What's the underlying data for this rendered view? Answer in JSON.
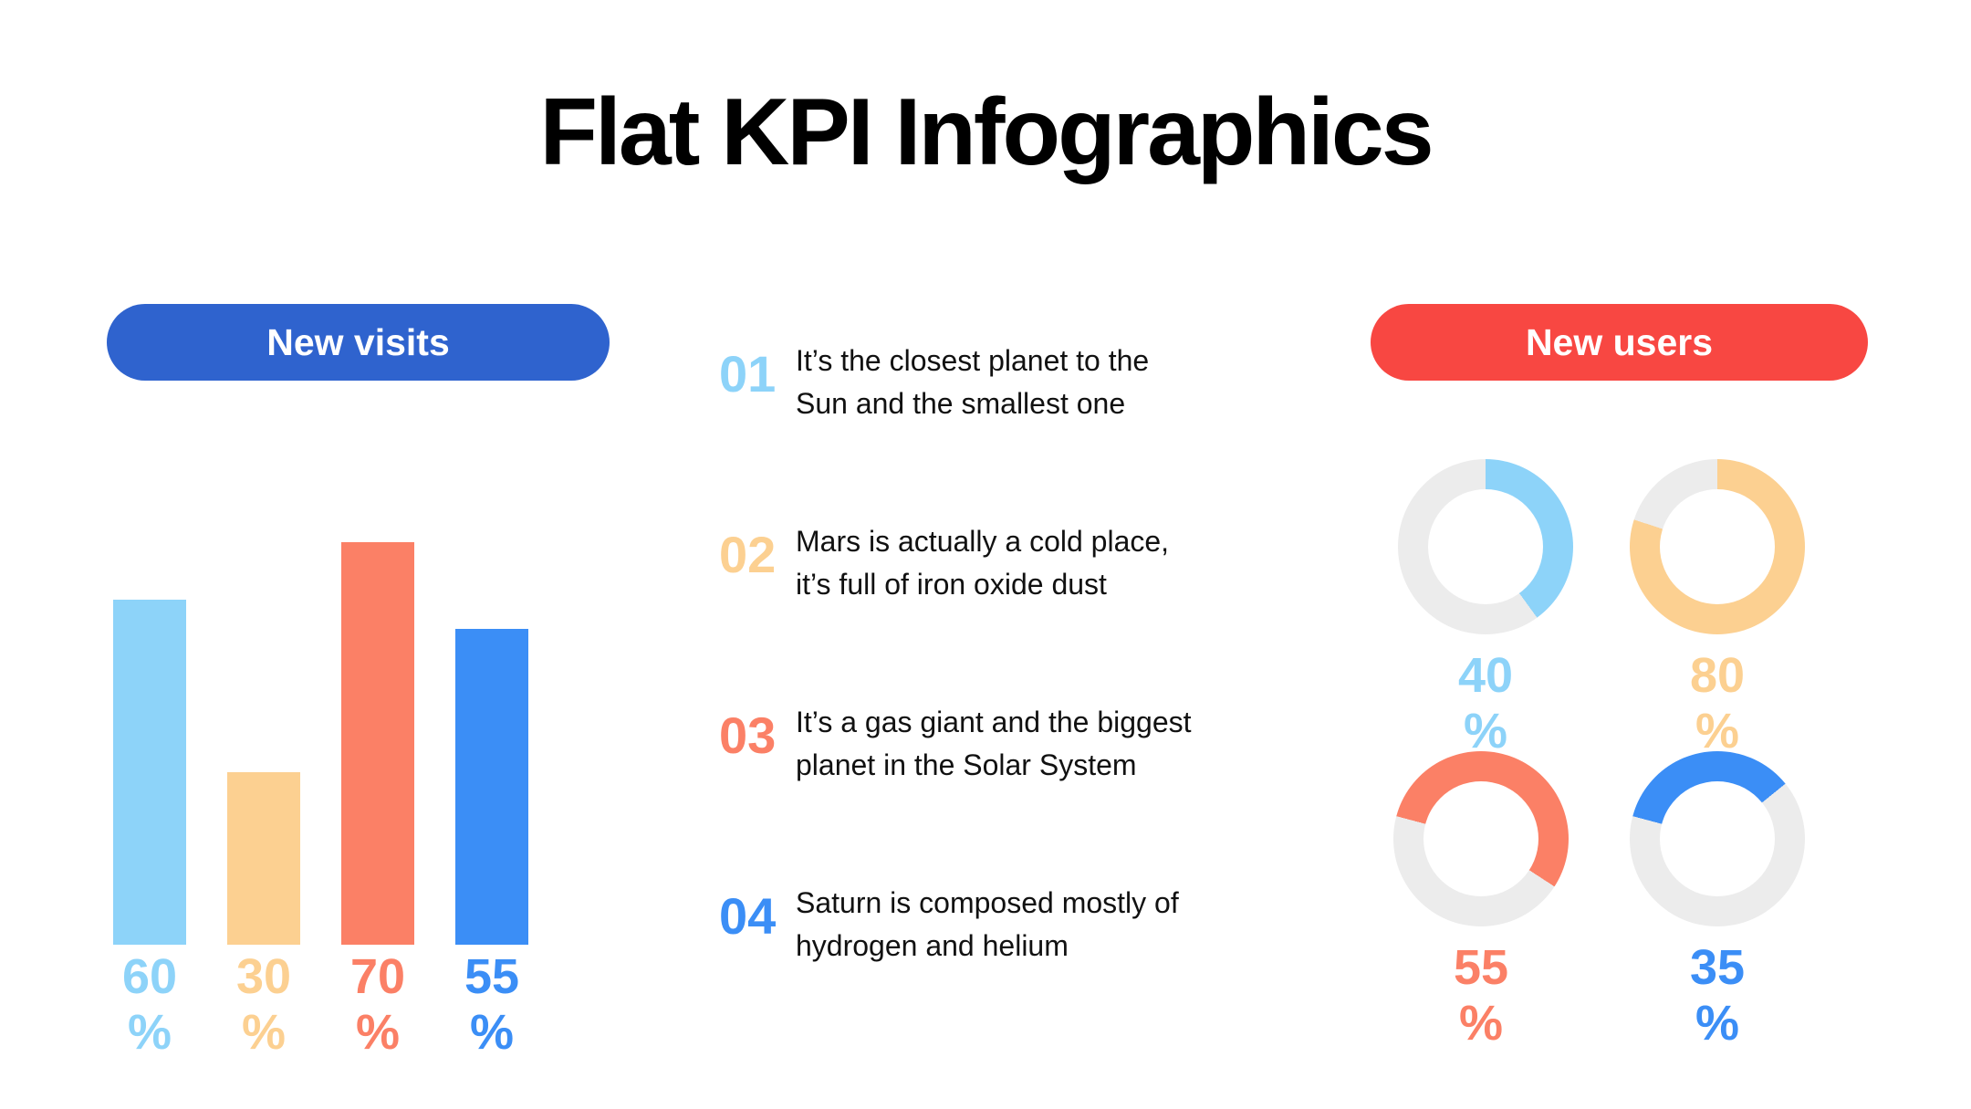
{
  "title": "Flat KPI Infographics",
  "palette": {
    "light_blue": "#8DD3F9",
    "yellow": "#FCD091",
    "salmon": "#FB8066",
    "blue": "#3B8EF6",
    "pill_blue": "#2F63CE",
    "pill_red": "#F84742",
    "track_gray": "#ECECEC",
    "text_dark": "#111111"
  },
  "left_panel": {
    "header": "New visits",
    "header_color": "#2F63CE"
  },
  "right_panel": {
    "header": "New users",
    "header_color": "#F84742"
  },
  "facts": {
    "items": [
      {
        "number": "01",
        "color": "#8DD3F9",
        "text": [
          "It’s the closest planet to the",
          "Sun and the smallest one"
        ]
      },
      {
        "number": "02",
        "color": "#FCD091",
        "text": [
          "Mars is actually a cold place,",
          "it’s full of iron oxide dust"
        ]
      },
      {
        "number": "03",
        "color": "#FB8066",
        "text": [
          "It’s a gas giant and the biggest",
          "planet in the Solar System"
        ]
      },
      {
        "number": "04",
        "color": "#3B8EF6",
        "text": [
          "Saturn is composed mostly of",
          "hydrogen and helium"
        ]
      }
    ]
  },
  "chart_data": [
    {
      "type": "bar",
      "title": "New visits",
      "categories": [
        "bar-1",
        "bar-2",
        "bar-3",
        "bar-4"
      ],
      "values": [
        60,
        30,
        70,
        55
      ],
      "unit": "%",
      "colors": [
        "#8DD3F9",
        "#FCD091",
        "#FB8066",
        "#3B8EF6"
      ],
      "ylim": [
        0,
        100
      ],
      "value_labels": true,
      "grid": false,
      "legend": false
    },
    {
      "type": "donut",
      "title": "New users",
      "categories": [
        "donut-1",
        "donut-2",
        "donut-3",
        "donut-4"
      ],
      "values": [
        40,
        80,
        55,
        35
      ],
      "unit": "%",
      "colors": [
        "#8DD3F9",
        "#FCD091",
        "#FB8066",
        "#3B8EF6"
      ],
      "track_color": "#ECECEC",
      "start_angles_deg": [
        0,
        0,
        285,
        285
      ],
      "value_labels": true,
      "legend": false
    }
  ]
}
